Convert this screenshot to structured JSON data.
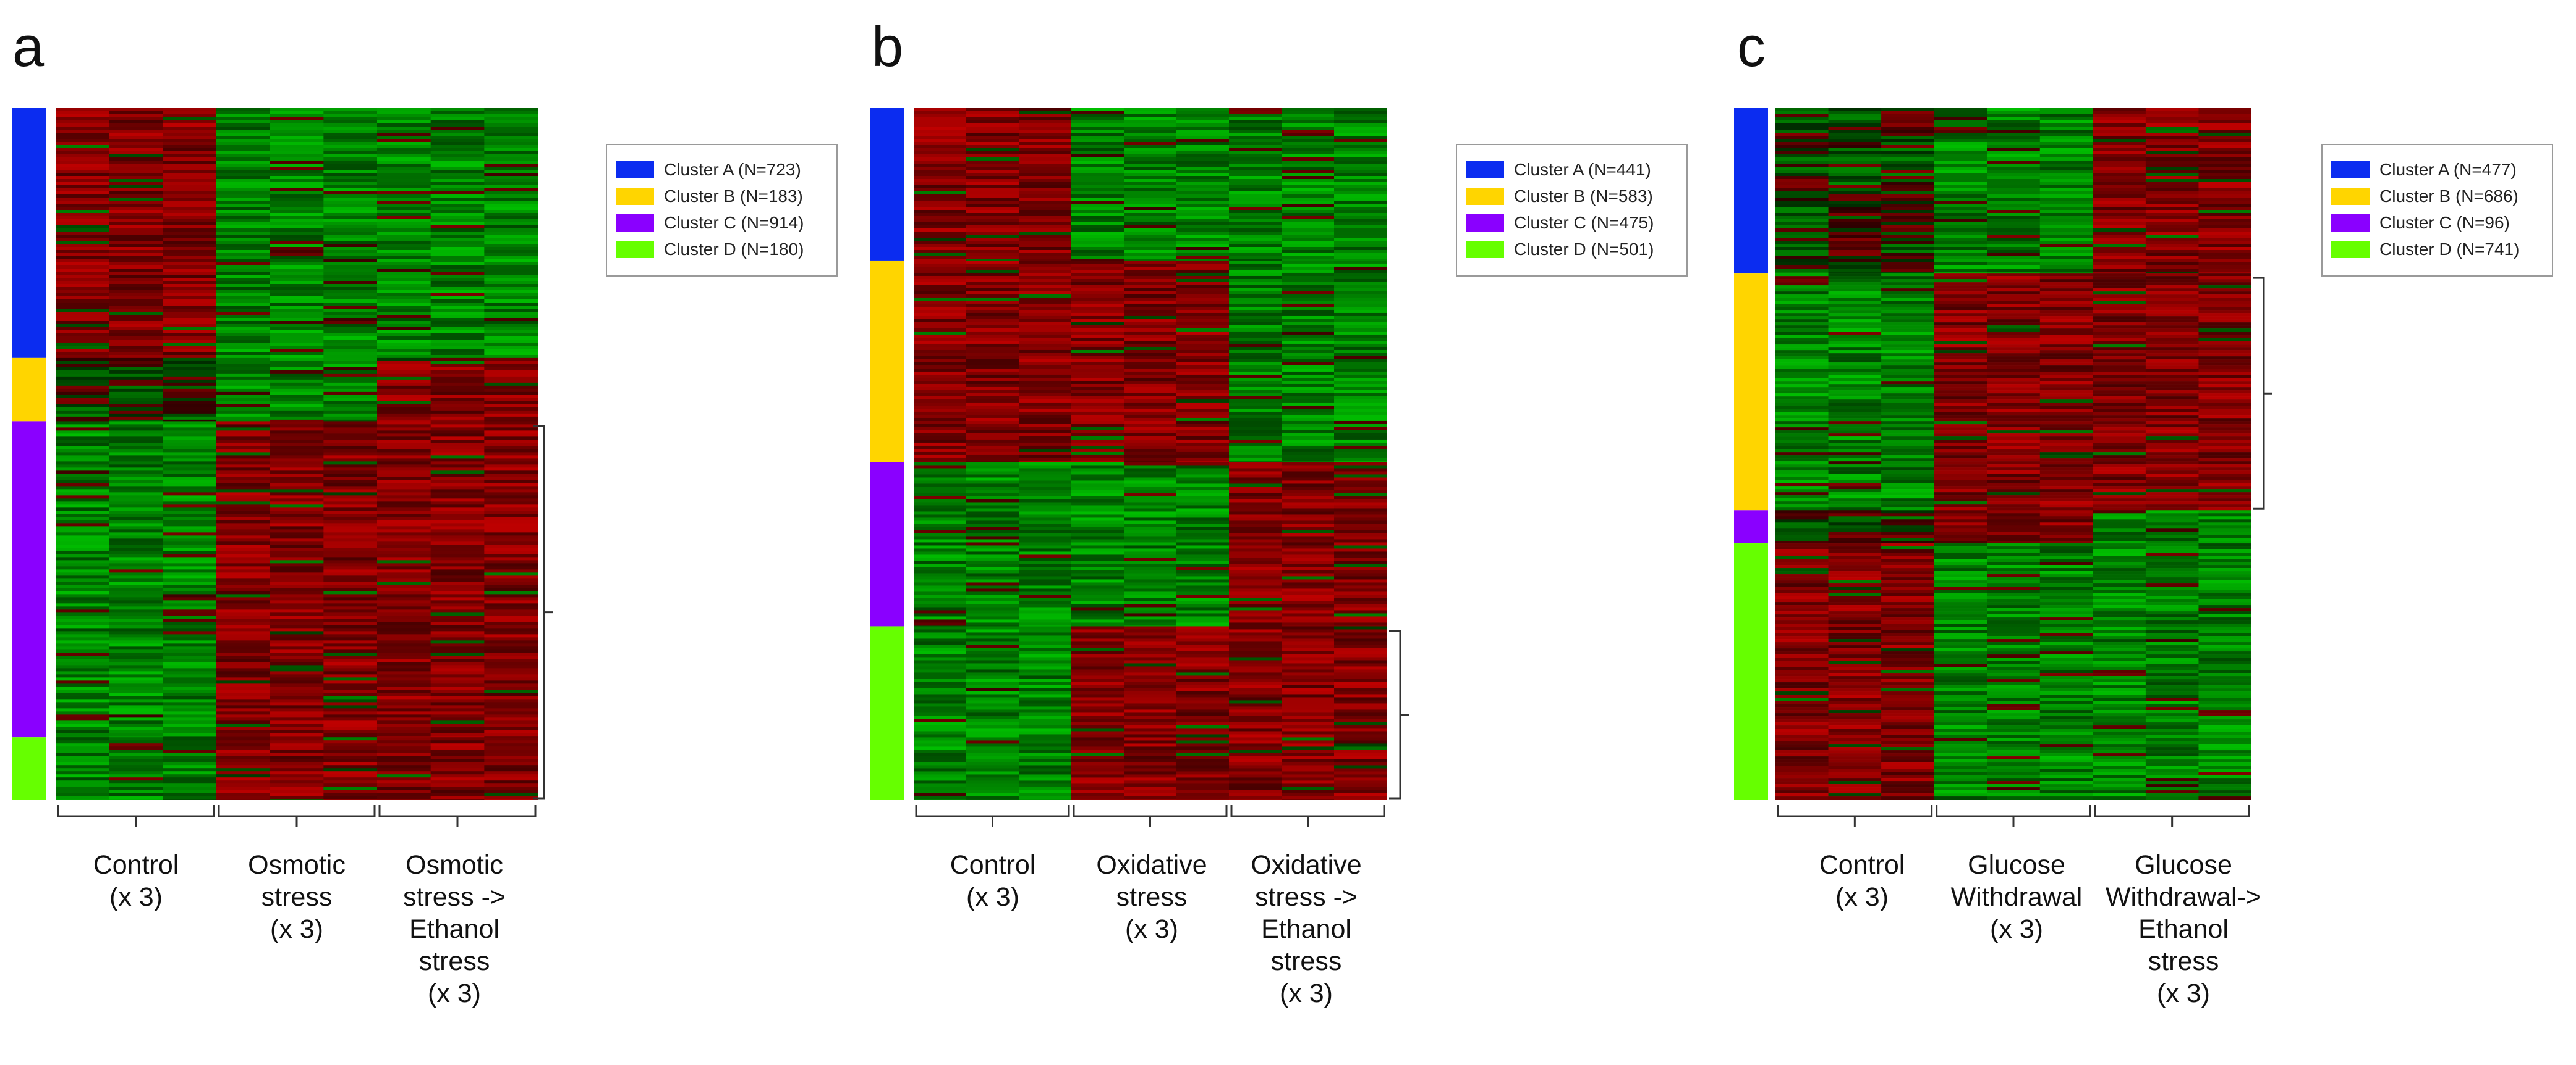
{
  "panels": [
    {
      "letter": "a",
      "conditions": [
        {
          "lines": [
            "Control",
            "(x 3)"
          ]
        },
        {
          "lines": [
            "Osmotic",
            "stress",
            "(x 3)"
          ]
        },
        {
          "lines": [
            "Osmotic",
            "stress ->",
            "Ethanol",
            "stress",
            "(x 3)"
          ]
        }
      ],
      "clusters": [
        {
          "label": "Cluster A",
          "n_text": "(N=723)",
          "n": 723,
          "color": "#0b2cf0"
        },
        {
          "label": "Cluster B",
          "n_text": "(N=183)",
          "n": 183,
          "color": "#ffd500"
        },
        {
          "label": "Cluster C",
          "n_text": "(N=914)",
          "n": 914,
          "color": "#8a00ff"
        },
        {
          "label": "Cluster D",
          "n_text": "(N=180)",
          "n": 180,
          "color": "#66ff00"
        }
      ]
    },
    {
      "letter": "b",
      "conditions": [
        {
          "lines": [
            "Control",
            "(x 3)"
          ]
        },
        {
          "lines": [
            "Oxidative",
            "stress",
            "(x 3)"
          ]
        },
        {
          "lines": [
            "Oxidative",
            "stress ->",
            "Ethanol",
            "stress",
            "(x 3)"
          ]
        }
      ],
      "clusters": [
        {
          "label": "Cluster A",
          "n_text": "(N=441)",
          "n": 441,
          "color": "#0b2cf0"
        },
        {
          "label": "Cluster B",
          "n_text": "(N=583)",
          "n": 583,
          "color": "#ffd500"
        },
        {
          "label": "Cluster C",
          "n_text": "(N=475)",
          "n": 475,
          "color": "#8a00ff"
        },
        {
          "label": "Cluster D",
          "n_text": "(N=501)",
          "n": 501,
          "color": "#66ff00"
        }
      ]
    },
    {
      "letter": "c",
      "conditions": [
        {
          "lines": [
            "Control",
            "(x 3)"
          ]
        },
        {
          "lines": [
            "Glucose",
            "Withdrawal",
            "(x 3)"
          ]
        },
        {
          "lines": [
            "Glucose",
            "Withdrawal->",
            "Ethanol",
            "stress",
            "(x 3)"
          ]
        }
      ],
      "clusters": [
        {
          "label": "Cluster A",
          "n_text": "(N=477)",
          "n": 477,
          "color": "#0b2cf0"
        },
        {
          "label": "Cluster B",
          "n_text": "(N=686)",
          "n": 686,
          "color": "#ffd500"
        },
        {
          "label": "Cluster C",
          "n_text": "(N=96)",
          "n": 96,
          "color": "#8a00ff"
        },
        {
          "label": "Cluster D",
          "n_text": "(N=741)",
          "n": 741,
          "color": "#66ff00"
        }
      ]
    }
  ],
  "chart_data": [
    {
      "type": "heatmap",
      "panel": "a",
      "columns": [
        "Control (x 3)",
        "Osmotic stress (x 3)",
        "Osmotic stress -> Ethanol stress (x 3)"
      ],
      "replicates_per_condition": 3,
      "rows_by_cluster": [
        {
          "cluster": "Cluster A",
          "n": 723,
          "pattern": [
            "up",
            "down",
            "down"
          ]
        },
        {
          "cluster": "Cluster B",
          "n": 183,
          "pattern": [
            "mixed",
            "down",
            "up"
          ]
        },
        {
          "cluster": "Cluster C",
          "n": 914,
          "pattern": [
            "down",
            "up",
            "up"
          ]
        },
        {
          "cluster": "Cluster D",
          "n": 180,
          "pattern": [
            "down",
            "up",
            "up"
          ]
        }
      ],
      "color_scale": {
        "low": "#00ff00",
        "mid": "#000000",
        "high": "#ff0000"
      }
    },
    {
      "type": "heatmap",
      "panel": "b",
      "columns": [
        "Control (x 3)",
        "Oxidative stress (x 3)",
        "Oxidative stress -> Ethanol stress (x 3)"
      ],
      "replicates_per_condition": 3,
      "rows_by_cluster": [
        {
          "cluster": "Cluster A",
          "n": 441,
          "pattern": [
            "up",
            "down",
            "down"
          ]
        },
        {
          "cluster": "Cluster B",
          "n": 583,
          "pattern": [
            "up",
            "up",
            "down"
          ]
        },
        {
          "cluster": "Cluster C",
          "n": 475,
          "pattern": [
            "down",
            "down",
            "up"
          ]
        },
        {
          "cluster": "Cluster D",
          "n": 501,
          "pattern": [
            "down",
            "up",
            "up"
          ]
        }
      ],
      "color_scale": {
        "low": "#00ff00",
        "mid": "#000000",
        "high": "#ff0000"
      }
    },
    {
      "type": "heatmap",
      "panel": "c",
      "columns": [
        "Control (x 3)",
        "Glucose Withdrawal (x 3)",
        "Glucose Withdrawal-> Ethanol stress (x 3)"
      ],
      "replicates_per_condition": 3,
      "rows_by_cluster": [
        {
          "cluster": "Cluster A",
          "n": 477,
          "pattern": [
            "mixed",
            "down",
            "up"
          ]
        },
        {
          "cluster": "Cluster B",
          "n": 686,
          "pattern": [
            "down",
            "up",
            "up"
          ]
        },
        {
          "cluster": "Cluster C",
          "n": 96,
          "pattern": [
            "mixed",
            "up",
            "down"
          ]
        },
        {
          "cluster": "Cluster D",
          "n": 741,
          "pattern": [
            "up",
            "down",
            "down"
          ]
        }
      ],
      "color_scale": {
        "low": "#00ff00",
        "mid": "#000000",
        "high": "#ff0000"
      }
    }
  ]
}
